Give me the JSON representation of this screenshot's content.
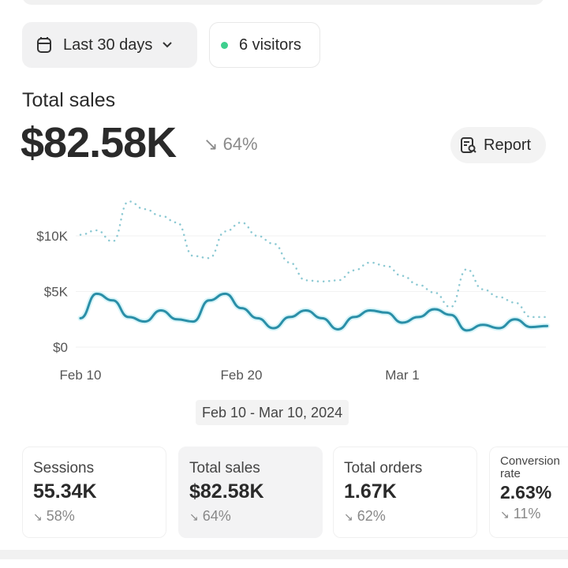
{
  "filters": {
    "date_range_label": "Last 30 days",
    "calendar_icon": "calendar-icon",
    "chevron_icon": "chevron-down-icon",
    "visitors_label": "6 visitors",
    "live_dot_color": "#3ecf8e"
  },
  "summary": {
    "title": "Total sales",
    "value": "$82.58K",
    "change": "64%",
    "change_direction": "down",
    "report_button": "Report",
    "report_icon": "report-search-icon"
  },
  "chart_data": {
    "type": "line",
    "x_tick_labels": [
      "Feb 10",
      "Feb 20",
      "Mar 1"
    ],
    "y_tick_labels": [
      "$10K",
      "$5K",
      "$0"
    ],
    "y_ticks": [
      10,
      5,
      0
    ],
    "ylim": [
      0,
      13.5
    ],
    "y_unit": "thousands USD",
    "x_start": "2024-02-10",
    "x_end": "2024-03-10",
    "grid": true,
    "series": [
      {
        "style": "solid",
        "color": "#2a8fa8",
        "values": [
          2.6,
          4.8,
          4.2,
          2.7,
          2.3,
          3.3,
          2.5,
          2.3,
          4.2,
          4.8,
          3.5,
          2.6,
          1.7,
          2.7,
          3.3,
          2.6,
          1.6,
          2.7,
          3.3,
          3.1,
          2.2,
          2.7,
          3.4,
          2.9,
          1.5,
          2.0,
          1.7,
          2.5,
          1.8,
          1.9
        ]
      },
      {
        "style": "dotted",
        "color": "#8cc9d3",
        "values": [
          10.1,
          10.5,
          9.5,
          13.1,
          12.4,
          11.8,
          11.2,
          8.2,
          8.0,
          10.4,
          11.2,
          10.0,
          9.3,
          7.6,
          6.0,
          5.9,
          6.0,
          6.9,
          7.6,
          7.3,
          6.4,
          5.6,
          4.9,
          3.6,
          7.0,
          5.2,
          4.5,
          4.0,
          2.7,
          2.7
        ]
      }
    ]
  },
  "date_range_text": "Feb 10 - Mar 10, 2024",
  "cards": [
    {
      "label": "Sessions",
      "value": "55.34K",
      "change": "58%",
      "active": false
    },
    {
      "label": "Total sales",
      "value": "$82.58K",
      "change": "64%",
      "active": true
    },
    {
      "label": "Total orders",
      "value": "1.67K",
      "change": "62%",
      "active": false
    },
    {
      "label": "Conversion rate",
      "value": "2.63%",
      "change": "11%",
      "active": false
    }
  ]
}
